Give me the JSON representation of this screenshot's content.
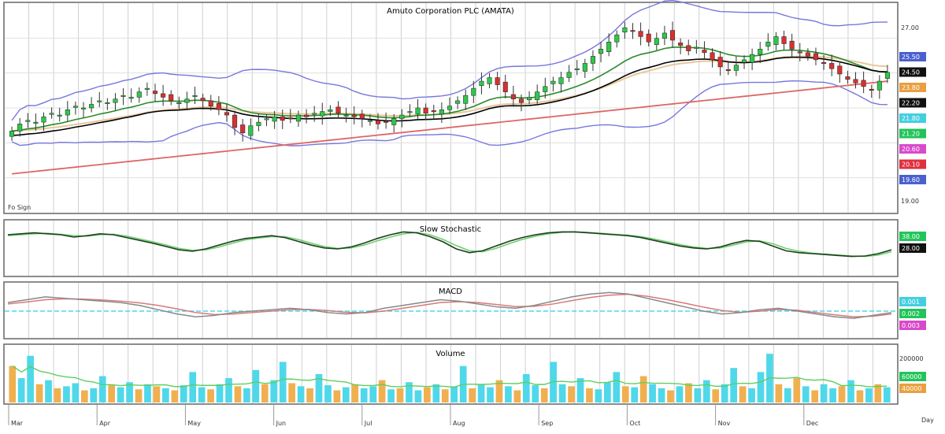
{
  "chart_data": [
    {
      "type": "candlestick",
      "title": "Amuto Corporation PLC (AMATA)",
      "corner_note": "Fo Sign",
      "y_ticks": [
        "27.00",
        "19.00"
      ],
      "ylim": [
        16.2,
        27.6
      ],
      "overlay_colors": {
        "bb_upper": "#7777dd",
        "bb_lower": "#7777dd",
        "ema_fast": "#000000",
        "ema_mid": "#2a8a2a",
        "ema_slow": "#e8c79a",
        "sma_long": "#dd6666"
      },
      "right_badges": [
        {
          "label": "25.50",
          "color": "#4a60d0"
        },
        {
          "label": "24.50",
          "color": "#111111"
        },
        {
          "label": "23.80",
          "color": "#e8a040"
        },
        {
          "label": "22.20",
          "color": "#111111"
        },
        {
          "label": "21.80",
          "color": "#44cfe0"
        },
        {
          "label": "21.20",
          "color": "#22c45a"
        },
        {
          "label": "20.60",
          "color": "#d84acb"
        },
        {
          "label": "20.10",
          "color": "#e03040"
        },
        {
          "label": "19.60",
          "color": "#4a60d0"
        }
      ],
      "closes": [
        20.6,
        21.0,
        21.2,
        21.1,
        21.4,
        21.6,
        21.5,
        21.8,
        22.0,
        21.9,
        22.1,
        22.3,
        22.2,
        22.4,
        22.6,
        22.5,
        22.8,
        23.0,
        22.7,
        22.5,
        22.3,
        22.2,
        22.4,
        22.6,
        22.3,
        22.0,
        21.8,
        21.5,
        20.8,
        20.5,
        20.9,
        21.1,
        21.3,
        21.4,
        21.2,
        21.3,
        21.5,
        21.4,
        21.6,
        21.7,
        21.8,
        21.6,
        21.5,
        21.4,
        21.3,
        21.2,
        21.0,
        21.1,
        21.3,
        21.5,
        21.7,
        21.9,
        21.6,
        21.7,
        21.8,
        22.0,
        22.3,
        22.6,
        23.0,
        23.4,
        23.6,
        23.2,
        22.8,
        22.4,
        22.2,
        22.5,
        22.8,
        23.1,
        23.4,
        23.6,
        23.9,
        24.1,
        24.4,
        24.8,
        25.2,
        25.6,
        26.0,
        26.4,
        26.2,
        25.9,
        25.6,
        25.8,
        26.1,
        25.7,
        25.4,
        25.1,
        25.3,
        25.0,
        24.6,
        24.2,
        24.0,
        24.3,
        24.6,
        24.9,
        25.2,
        25.6,
        25.9,
        25.5,
        25.2,
        25.0,
        24.8,
        24.6,
        24.4,
        24.1,
        23.8,
        23.5,
        23.3,
        23.1,
        22.9,
        23.4,
        23.9
      ],
      "x_tick_labels": [
        "Mar",
        "Apr",
        "May",
        "Jun",
        "Jul",
        "Aug",
        "Sep",
        "Oct",
        "Nov",
        "Dec"
      ]
    },
    {
      "type": "line",
      "title": "Slow Stochastic",
      "series_colors": [
        "#1e3f20",
        "#6fd06f"
      ],
      "right_badges": [
        {
          "label": "38.00",
          "color": "#22c45a"
        },
        {
          "label": "28.00",
          "color": "#111111"
        }
      ],
      "k": [
        80,
        82,
        84,
        82,
        80,
        75,
        78,
        82,
        80,
        74,
        68,
        62,
        55,
        48,
        45,
        50,
        58,
        66,
        72,
        75,
        78,
        74,
        66,
        58,
        52,
        50,
        54,
        62,
        72,
        80,
        86,
        84,
        76,
        65,
        50,
        42,
        46,
        56,
        66,
        74,
        80,
        84,
        86,
        86,
        84,
        82,
        80,
        78,
        74,
        68,
        62,
        56,
        52,
        50,
        54,
        62,
        68,
        66,
        56,
        46,
        42,
        40,
        38,
        36,
        34,
        35,
        40,
        48
      ],
      "d": [
        78,
        80,
        82,
        83,
        81,
        78,
        77,
        80,
        81,
        77,
        71,
        65,
        58,
        51,
        47,
        48,
        54,
        62,
        69,
        73,
        76,
        76,
        70,
        62,
        55,
        51,
        52,
        58,
        67,
        75,
        82,
        85,
        80,
        70,
        57,
        46,
        44,
        51,
        61,
        70,
        77,
        82,
        85,
        86,
        85,
        83,
        81,
        79,
        76,
        71,
        65,
        59,
        54,
        51,
        52,
        58,
        65,
        67,
        61,
        51,
        45,
        41,
        39,
        37,
        35,
        34,
        37,
        44
      ]
    },
    {
      "type": "line",
      "title": "MACD",
      "series_colors": [
        "#4fd8ea",
        "#d87878"
      ],
      "right_badges": [
        {
          "label": "0.001",
          "color": "#44cfe0"
        },
        {
          "label": "0.002",
          "color": "#22c45a"
        },
        {
          "label": "0.003",
          "color": "#d84acb"
        }
      ],
      "macd": [
        0.3,
        0.4,
        0.5,
        0.45,
        0.4,
        0.35,
        0.3,
        0.2,
        0.05,
        -0.1,
        -0.2,
        -0.15,
        -0.05,
        0.0,
        0.05,
        0.1,
        0.05,
        -0.05,
        -0.1,
        -0.05,
        0.1,
        0.2,
        0.3,
        0.4,
        0.35,
        0.25,
        0.15,
        0.1,
        0.2,
        0.35,
        0.5,
        0.6,
        0.65,
        0.6,
        0.45,
        0.3,
        0.15,
        0.0,
        -0.1,
        -0.05,
        0.05,
        0.1,
        0.0,
        -0.1,
        -0.2,
        -0.25,
        -0.15,
        -0.05
      ],
      "signal": [
        0.25,
        0.32,
        0.4,
        0.43,
        0.42,
        0.39,
        0.35,
        0.29,
        0.2,
        0.08,
        -0.05,
        -0.12,
        -0.1,
        -0.05,
        0.0,
        0.05,
        0.06,
        0.02,
        -0.04,
        -0.06,
        0.0,
        0.1,
        0.2,
        0.3,
        0.33,
        0.3,
        0.23,
        0.16,
        0.17,
        0.25,
        0.37,
        0.48,
        0.56,
        0.59,
        0.52,
        0.41,
        0.28,
        0.14,
        0.02,
        -0.04,
        0.0,
        0.06,
        0.03,
        -0.05,
        -0.13,
        -0.2,
        -0.18,
        -0.1
      ],
      "zero_line": 0
    },
    {
      "type": "bar",
      "title": "Volume",
      "y_tick": "200000",
      "ylim": [
        0,
        260000
      ],
      "up_color": "#4fd8ea",
      "down_color": "#f0b050",
      "avg_color": "#5ecf5e",
      "right_badges": [
        {
          "label": "60000",
          "color": "#22c45a"
        },
        {
          "label": "40000",
          "color": "#e8a040"
        }
      ],
      "volumes": [
        180000,
        120000,
        230000,
        90000,
        110000,
        70000,
        80000,
        95000,
        60000,
        70000,
        130000,
        85000,
        75000,
        100000,
        65000,
        90000,
        80000,
        70000,
        60000,
        85000,
        150000,
        75000,
        65000,
        90000,
        120000,
        80000,
        70000,
        160000,
        90000,
        110000,
        200000,
        95000,
        80000,
        70000,
        140000,
        85000,
        60000,
        75000,
        90000,
        70000,
        80000,
        110000,
        65000,
        70000,
        100000,
        60000,
        75000,
        90000,
        65000,
        80000,
        180000,
        70000,
        90000,
        75000,
        110000,
        80000,
        60000,
        140000,
        85000,
        70000,
        200000,
        90000,
        80000,
        120000,
        70000,
        65000,
        100000,
        150000,
        80000,
        75000,
        130000,
        90000,
        70000,
        60000,
        80000,
        95000,
        70000,
        110000,
        65000,
        90000,
        170000,
        80000,
        70000,
        150000,
        240000,
        90000,
        70000,
        120000,
        80000,
        60000,
        90000,
        70000,
        80000,
        110000,
        60000,
        70000,
        90000,
        75000
      ],
      "up": [
        0,
        1,
        1,
        0,
        1,
        0,
        1,
        1,
        0,
        1,
        1,
        0,
        1,
        1,
        0,
        1,
        0,
        1,
        0,
        1,
        1,
        1,
        0,
        1,
        1,
        0,
        1,
        1,
        0,
        1,
        1,
        0,
        1,
        0,
        1,
        1,
        0,
        1,
        0,
        1,
        1,
        0,
        1,
        0,
        1,
        1,
        0,
        1,
        0,
        1,
        1,
        0,
        1,
        1,
        0,
        1,
        0,
        1,
        1,
        0,
        1,
        1,
        0,
        1,
        0,
        1,
        1,
        1,
        0,
        1,
        0,
        1,
        1,
        0,
        1,
        0,
        1,
        1,
        0,
        1,
        1,
        0,
        1,
        1,
        1,
        0,
        1,
        0,
        1,
        0,
        1,
        1,
        0,
        1,
        0,
        1,
        0,
        1
      ],
      "x_tick_labels": [
        "Mar",
        "Apr",
        "May",
        "Jun",
        "Jul",
        "Aug",
        "Sep",
        "Oct",
        "Nov",
        "Dec"
      ],
      "corner_note": "Day"
    }
  ]
}
